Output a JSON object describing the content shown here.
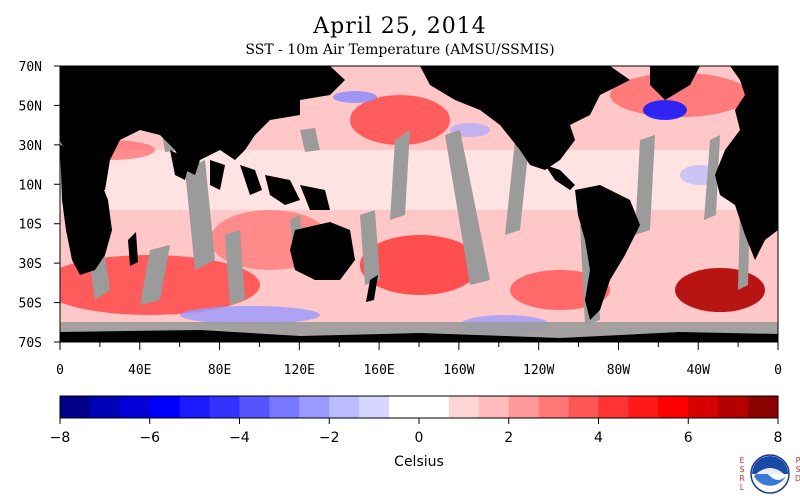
{
  "title": "April 25, 2014",
  "subtitle": "SST - 10m Air Temperature (AMSU/SSMIS)",
  "map": {
    "lat_labels": [
      "70N",
      "50N",
      "30N",
      "10N",
      "10S",
      "30S",
      "50S",
      "70S"
    ],
    "lon_labels": [
      "0",
      "40E",
      "80E",
      "120E",
      "160E",
      "160W",
      "120W",
      "80W",
      "40W",
      "0"
    ],
    "land_color": "#000000",
    "no_data_color": "#9b9b9b"
  },
  "colorbar": {
    "label": "Celsius",
    "ticks": [
      "−8",
      "−6",
      "−4",
      "−2",
      "0",
      "2",
      "4",
      "6",
      "8"
    ],
    "min": -8,
    "max": 8,
    "colors": [
      "#00008b",
      "#0000b4",
      "#0000d7",
      "#0000ff",
      "#1a1aff",
      "#3333ff",
      "#5555ff",
      "#7777ff",
      "#9999ff",
      "#bbbbff",
      "#d6d6ff",
      "#ffffff",
      "#ffffff",
      "#ffd6d6",
      "#ffbbbb",
      "#ff9999",
      "#ff7777",
      "#ff5555",
      "#ff3333",
      "#ff1a1a",
      "#ff0000",
      "#d70000",
      "#b40000",
      "#8b0000"
    ]
  },
  "logos": {
    "left_text": "ESRL",
    "right_text": "PSD"
  }
}
